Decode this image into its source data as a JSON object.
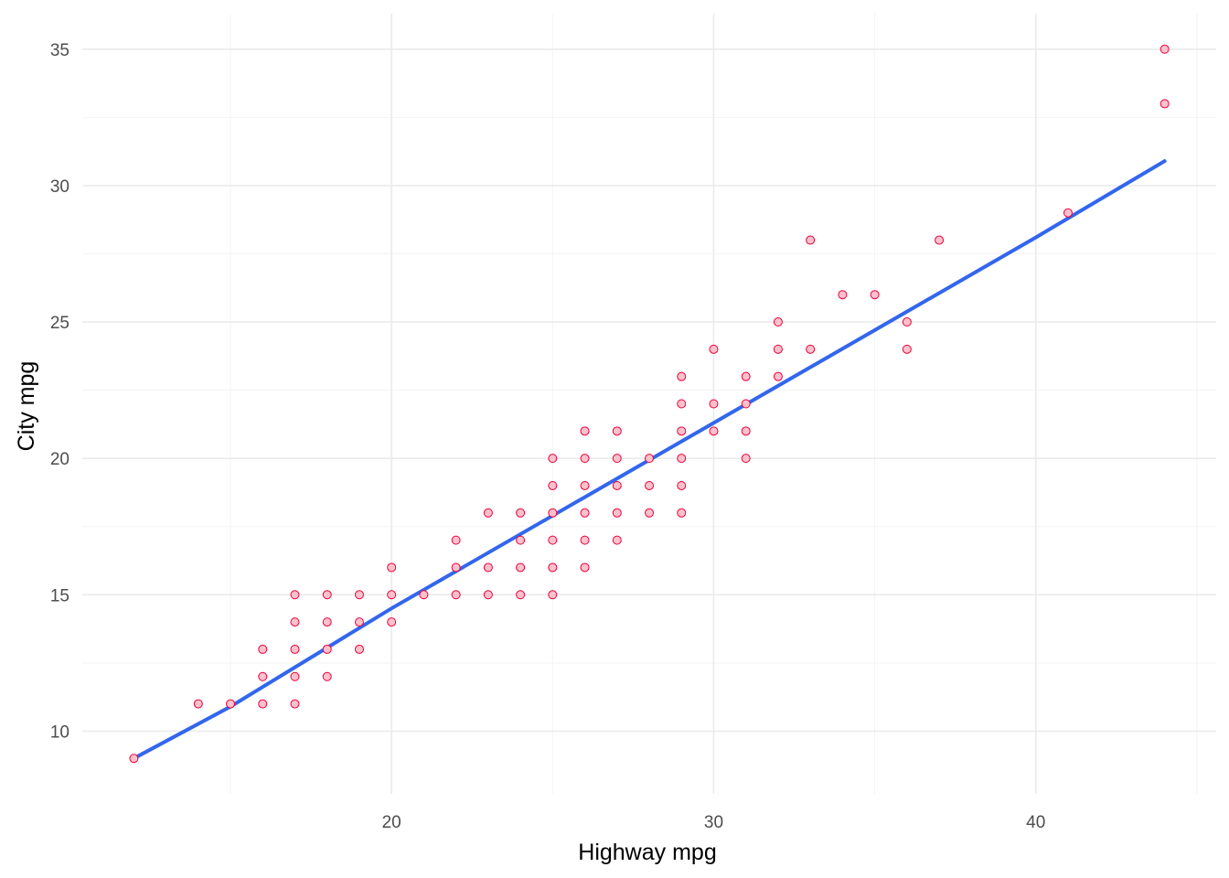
{
  "chart_data": {
    "type": "scatter",
    "title": "",
    "xlabel": "Highway mpg",
    "ylabel": "City mpg",
    "xlim": [
      10.4,
      45.6
    ],
    "ylim": [
      7.7,
      36.3
    ],
    "x_ticks": [
      20,
      30,
      40
    ],
    "x_minor_ticks": [
      15,
      25,
      35,
      45
    ],
    "y_ticks": [
      10,
      15,
      20,
      25,
      30,
      35
    ],
    "y_minor_ticks": [
      12.5,
      17.5,
      22.5,
      27.5,
      32.5
    ],
    "grid": true,
    "legend": "none",
    "colors": {
      "point_fill": "#ffc0cb",
      "point_stroke": "#e8003a",
      "fit_line": "#3366ee"
    },
    "points": [
      [
        12,
        9
      ],
      [
        14,
        11
      ],
      [
        15,
        11
      ],
      [
        16,
        11
      ],
      [
        16,
        12
      ],
      [
        16,
        13
      ],
      [
        17,
        11
      ],
      [
        17,
        12
      ],
      [
        17,
        13
      ],
      [
        17,
        14
      ],
      [
        17,
        15
      ],
      [
        18,
        12
      ],
      [
        18,
        13
      ],
      [
        18,
        14
      ],
      [
        18,
        15
      ],
      [
        19,
        13
      ],
      [
        19,
        14
      ],
      [
        19,
        15
      ],
      [
        20,
        14
      ],
      [
        20,
        15
      ],
      [
        20,
        16
      ],
      [
        21,
        15
      ],
      [
        22,
        15
      ],
      [
        22,
        16
      ],
      [
        22,
        17
      ],
      [
        23,
        15
      ],
      [
        23,
        16
      ],
      [
        23,
        18
      ],
      [
        24,
        15
      ],
      [
        24,
        16
      ],
      [
        24,
        17
      ],
      [
        24,
        18
      ],
      [
        25,
        15
      ],
      [
        25,
        16
      ],
      [
        25,
        17
      ],
      [
        25,
        18
      ],
      [
        25,
        19
      ],
      [
        25,
        20
      ],
      [
        26,
        16
      ],
      [
        26,
        17
      ],
      [
        26,
        18
      ],
      [
        26,
        19
      ],
      [
        26,
        20
      ],
      [
        26,
        21
      ],
      [
        27,
        17
      ],
      [
        27,
        18
      ],
      [
        27,
        19
      ],
      [
        27,
        20
      ],
      [
        27,
        21
      ],
      [
        28,
        18
      ],
      [
        28,
        19
      ],
      [
        28,
        20
      ],
      [
        29,
        18
      ],
      [
        29,
        19
      ],
      [
        29,
        20
      ],
      [
        29,
        21
      ],
      [
        29,
        22
      ],
      [
        29,
        23
      ],
      [
        30,
        21
      ],
      [
        30,
        22
      ],
      [
        30,
        24
      ],
      [
        31,
        20
      ],
      [
        31,
        21
      ],
      [
        31,
        22
      ],
      [
        31,
        23
      ],
      [
        32,
        23
      ],
      [
        32,
        24
      ],
      [
        32,
        25
      ],
      [
        33,
        24
      ],
      [
        33,
        28
      ],
      [
        34,
        26
      ],
      [
        35,
        26
      ],
      [
        36,
        24
      ],
      [
        36,
        25
      ],
      [
        37,
        28
      ],
      [
        41,
        29
      ],
      [
        44,
        33
      ],
      [
        44,
        35
      ]
    ],
    "fit_line": {
      "x": [
        12,
        15,
        20,
        25,
        30,
        35,
        40,
        44
      ],
      "y": [
        9.0,
        10.9,
        14.5,
        17.9,
        21.3,
        24.7,
        28.1,
        30.9
      ]
    }
  }
}
